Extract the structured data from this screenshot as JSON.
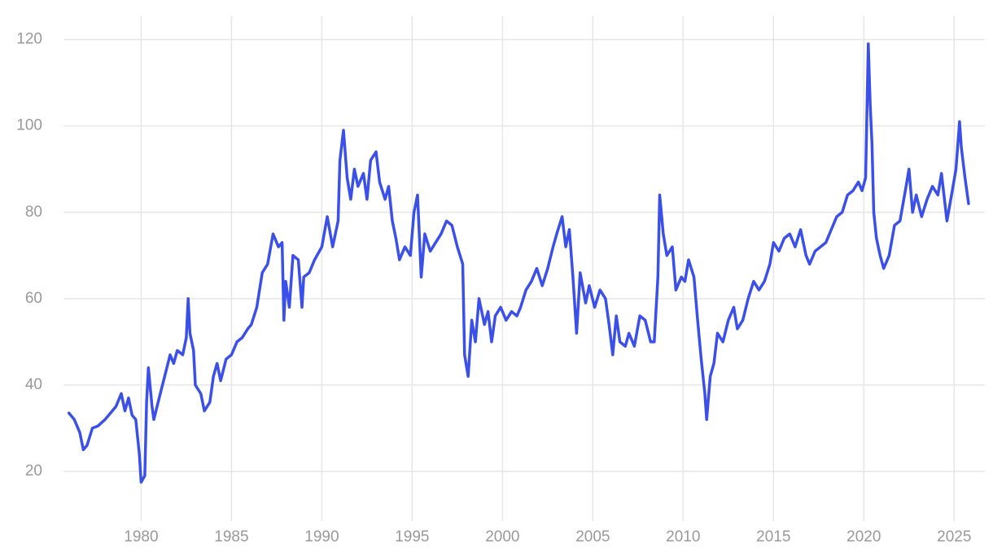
{
  "chart_data": {
    "type": "line",
    "x": [
      1976.0,
      1976.3,
      1976.6,
      1976.8,
      1977.0,
      1977.3,
      1977.6,
      1978.0,
      1978.4,
      1978.6,
      1978.9,
      1979.1,
      1979.3,
      1979.5,
      1979.7,
      1979.9,
      1980.0,
      1980.2,
      1980.3,
      1980.4,
      1980.6,
      1980.7,
      1981.0,
      1981.3,
      1981.6,
      1981.8,
      1982.0,
      1982.3,
      1982.5,
      1982.6,
      1982.7,
      1982.9,
      1983.0,
      1983.3,
      1983.5,
      1983.8,
      1984.0,
      1984.2,
      1984.4,
      1984.7,
      1985.0,
      1985.3,
      1985.6,
      1985.9,
      1986.1,
      1986.4,
      1986.7,
      1987.0,
      1987.3,
      1987.6,
      1987.8,
      1987.9,
      1988.0,
      1988.2,
      1988.4,
      1988.7,
      1988.9,
      1989.0,
      1989.3,
      1989.6,
      1990.0,
      1990.3,
      1990.6,
      1990.9,
      1991.0,
      1991.2,
      1991.4,
      1991.6,
      1991.8,
      1992.0,
      1992.3,
      1992.5,
      1992.7,
      1993.0,
      1993.2,
      1993.5,
      1993.7,
      1993.9,
      1994.1,
      1994.3,
      1994.6,
      1994.9,
      1995.1,
      1995.3,
      1995.5,
      1995.7,
      1996.0,
      1996.3,
      1996.6,
      1996.9,
      1997.2,
      1997.5,
      1997.8,
      1997.9,
      1998.1,
      1998.3,
      1998.5,
      1998.7,
      1999.0,
      1999.2,
      1999.4,
      1999.6,
      1999.9,
      2000.2,
      2000.5,
      2000.8,
      2001.0,
      2001.3,
      2001.6,
      2001.9,
      2002.2,
      2002.5,
      2002.8,
      2003.0,
      2003.3,
      2003.5,
      2003.7,
      2003.9,
      2004.1,
      2004.3,
      2004.6,
      2004.8,
      2005.1,
      2005.4,
      2005.7,
      2005.9,
      2006.1,
      2006.3,
      2006.5,
      2006.8,
      2007.0,
      2007.3,
      2007.6,
      2007.9,
      2008.2,
      2008.4,
      2008.6,
      2008.7,
      2008.9,
      2009.1,
      2009.4,
      2009.6,
      2009.9,
      2010.1,
      2010.3,
      2010.6,
      2010.8,
      2011.0,
      2011.2,
      2011.3,
      2011.5,
      2011.7,
      2011.9,
      2012.2,
      2012.5,
      2012.8,
      2013.0,
      2013.3,
      2013.6,
      2013.9,
      2014.2,
      2014.5,
      2014.8,
      2015.0,
      2015.3,
      2015.6,
      2015.9,
      2016.2,
      2016.5,
      2016.8,
      2017.0,
      2017.3,
      2017.6,
      2017.9,
      2018.2,
      2018.5,
      2018.8,
      2019.1,
      2019.4,
      2019.7,
      2019.9,
      2020.1,
      2020.25,
      2020.35,
      2020.45,
      2020.55,
      2020.7,
      2020.9,
      2021.1,
      2021.4,
      2021.7,
      2022.0,
      2022.3,
      2022.5,
      2022.7,
      2022.9,
      2023.2,
      2023.5,
      2023.8,
      2024.1,
      2024.3,
      2024.6,
      2024.9,
      2025.1,
      2025.3,
      2025.4,
      2025.6,
      2025.8
    ],
    "series": [
      {
        "color": "#3b50e8",
        "values": [
          33.5,
          32,
          29,
          25,
          26,
          30,
          30.5,
          32,
          34,
          35,
          38,
          34,
          37,
          33,
          32,
          24,
          17.5,
          19,
          36,
          44,
          35,
          32,
          37,
          42,
          47,
          45,
          48,
          47,
          51,
          60,
          52,
          48,
          40,
          38,
          34,
          36,
          42,
          45,
          41,
          46,
          47,
          50,
          51,
          53,
          54,
          58,
          66,
          68,
          75,
          72,
          73,
          55,
          64,
          58,
          70,
          69,
          58,
          65,
          66,
          69,
          72,
          79,
          72,
          78,
          92,
          99,
          88,
          83,
          90,
          86,
          89,
          83,
          92,
          94,
          87,
          83,
          86,
          78,
          74,
          69,
          72,
          70,
          80,
          84,
          65,
          75,
          71,
          73,
          75,
          78,
          77,
          72,
          68,
          47,
          42,
          55,
          50,
          60,
          54,
          57,
          50,
          56,
          58,
          55,
          57,
          56,
          58,
          62,
          64,
          67,
          63,
          67,
          72,
          75,
          79,
          72,
          76,
          65,
          52,
          66,
          59,
          63,
          58,
          62,
          60,
          54,
          47,
          56,
          50,
          49,
          52,
          49,
          56,
          55,
          50,
          50,
          65,
          84,
          75,
          70,
          72,
          62,
          65,
          64,
          69,
          65,
          55,
          46,
          38,
          32,
          42,
          45,
          52,
          50,
          55,
          58,
          53,
          55,
          60,
          64,
          62,
          64,
          68,
          73,
          71,
          74,
          75,
          72,
          76,
          70,
          68,
          71,
          72,
          73,
          76,
          79,
          80,
          84,
          85,
          87,
          85,
          88,
          119,
          105,
          96,
          80,
          74,
          70,
          67,
          70,
          77,
          78,
          85,
          90,
          80,
          84,
          79,
          83,
          86,
          84,
          89,
          78,
          85,
          90,
          101,
          95,
          88,
          82
        ]
      }
    ],
    "xlim": [
      1975.7,
      2026.7
    ],
    "xticks": [
      1980,
      1985,
      1990,
      1995,
      2000,
      2005,
      2010,
      2015,
      2020,
      2025
    ],
    "ylim": [
      10,
      122
    ],
    "yticks": [
      20,
      40,
      60,
      80,
      100,
      120
    ],
    "grid": true
  }
}
